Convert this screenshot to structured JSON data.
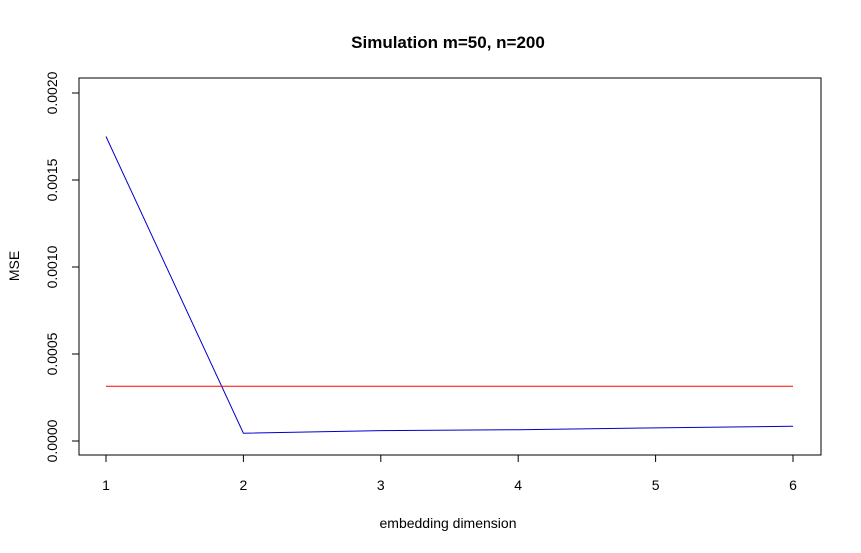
{
  "chart_data": {
    "type": "line",
    "title": "Simulation m=50, n=200",
    "xlabel": "embedding dimension",
    "ylabel": "MSE",
    "xlim": [
      1,
      6
    ],
    "ylim": [
      0,
      0.002
    ],
    "x_ticks": [
      1,
      2,
      3,
      4,
      5,
      6
    ],
    "x_tick_labels": [
      "1",
      "2",
      "3",
      "4",
      "5",
      "6"
    ],
    "y_ticks": [
      0,
      0.0005,
      0.001,
      0.0015,
      0.002
    ],
    "y_tick_labels": [
      "0.0000",
      "0.0005",
      "0.0010",
      "0.0015",
      "0.0020"
    ],
    "grid": false,
    "series": [
      {
        "color": "#0000cc",
        "x": [
          1,
          2,
          3,
          4,
          5,
          6
        ],
        "y": [
          0.00175,
          4.5e-05,
          6e-05,
          6.5e-05,
          7.5e-05,
          8.5e-05
        ]
      },
      {
        "color": "#ff0000",
        "x": [
          1,
          6
        ],
        "y": [
          0.000315,
          0.000315
        ]
      }
    ]
  }
}
